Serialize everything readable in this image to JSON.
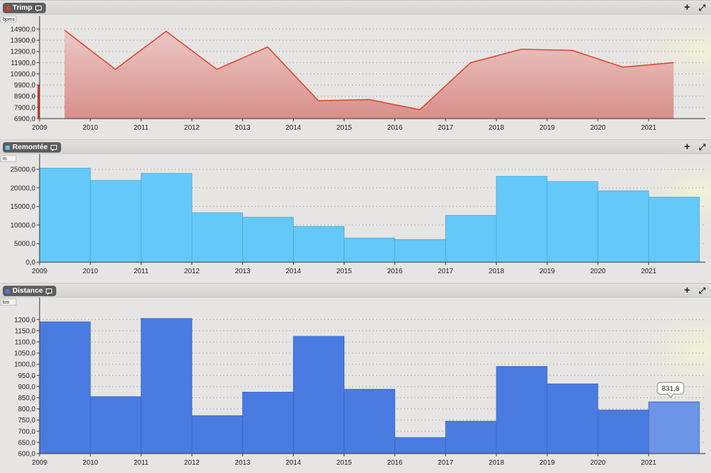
{
  "chart_data": [
    {
      "type": "area",
      "title": "Trimp",
      "unit": "bpms",
      "color": "#e0452a",
      "fill": "#e7a6a3",
      "x": [
        "2009",
        "2010",
        "2011",
        "2012",
        "2013",
        "2014",
        "2015",
        "2016",
        "2017",
        "2018",
        "2019",
        "2020",
        "2021"
      ],
      "x_ticks": [
        "2009",
        "2010",
        "2011",
        "2012",
        "2013",
        "2014",
        "2015",
        "2016",
        "2017",
        "2018",
        "2019",
        "2020",
        "2021"
      ],
      "values": [
        14800,
        11300,
        14700,
        11300,
        13300,
        8500,
        8600,
        7700,
        11900,
        13100,
        13000,
        11500,
        11900
      ],
      "y_ticks": [
        "6900,0",
        "7900,0",
        "8900,0",
        "9900,0",
        "10900,0",
        "11900,0",
        "12900,0",
        "13900,0",
        "14900,0"
      ],
      "ylim": [
        6900,
        15700
      ],
      "grid": "horizontal-dotted"
    },
    {
      "type": "bar",
      "title": "Remontée",
      "unit": "m",
      "color": "#64c8f8",
      "x_ticks": [
        "2009",
        "2010",
        "2011",
        "2012",
        "2013",
        "2014",
        "2015",
        "2016",
        "2017",
        "2018",
        "2019",
        "2020",
        "2021"
      ],
      "categories": [
        "2009",
        "2010",
        "2011",
        "2012",
        "2013",
        "2014",
        "2015",
        "2016",
        "2017",
        "2018",
        "2019",
        "2020",
        "2021"
      ],
      "values": [
        25300,
        22000,
        23900,
        13300,
        12100,
        9600,
        6500,
        6100,
        12600,
        23100,
        21700,
        19200,
        17500
      ],
      "y_ticks": [
        "0,0",
        "5000,0",
        "10000,0",
        "15000,0",
        "20000,0",
        "25000,0"
      ],
      "ylim": [
        0,
        28000
      ],
      "grid": "horizontal-dotted"
    },
    {
      "type": "bar",
      "title": "Distance",
      "unit": "km",
      "color": "#4a7be1",
      "highlight_color": "#6c95e8",
      "x_ticks": [
        "2009",
        "2010",
        "2011",
        "2012",
        "2013",
        "2014",
        "2015",
        "2016",
        "2017",
        "2018",
        "2019",
        "2020",
        "2021"
      ],
      "categories": [
        "2009",
        "2010",
        "2011",
        "2012",
        "2013",
        "2014",
        "2015",
        "2016",
        "2017",
        "2018",
        "2019",
        "2020",
        "2021"
      ],
      "values": [
        1190,
        855,
        1205,
        770,
        875,
        1125,
        888,
        672,
        745,
        990,
        912,
        795,
        831.8
      ],
      "y_ticks": [
        "600,0",
        "650,0",
        "700,0",
        "750,0",
        "800,0",
        "850,0",
        "900,0",
        "950,0",
        "1000,0",
        "1050,0",
        "1100,0",
        "1150,0",
        "1200,0"
      ],
      "ylim": [
        600,
        1280
      ],
      "tooltip": "831,8",
      "grid": "horizontal-dotted"
    }
  ],
  "panels": [
    {
      "label": "Trimp",
      "swatch": "#e23b2a"
    },
    {
      "label": "Remontée",
      "swatch": "#60c6f6"
    },
    {
      "label": "Distance",
      "swatch": "#4a7be1"
    }
  ],
  "buttons": {
    "plus": "+",
    "expand": "⤢"
  }
}
